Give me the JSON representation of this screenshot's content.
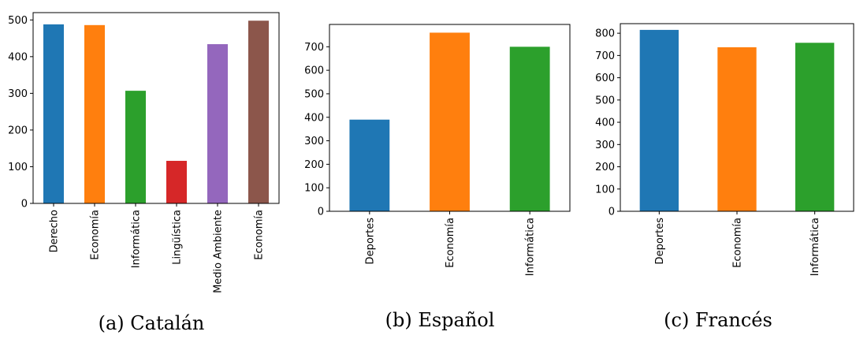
{
  "chart_data": [
    {
      "type": "bar",
      "caption": "(a) Catalán",
      "categories": [
        "Derecho",
        "Economía",
        "Informática",
        "Lingüística",
        "Medio Ambiente",
        "Economía"
      ],
      "values": [
        488,
        486,
        307,
        116,
        434,
        498
      ],
      "colors": [
        "#1f77b4",
        "#ff7f0e",
        "#2ca02c",
        "#d62728",
        "#9467bd",
        "#8c564b"
      ],
      "yticks": [
        0,
        100,
        200,
        300,
        400,
        500
      ],
      "ylim": [
        0,
        520
      ],
      "grid": false,
      "legend": false
    },
    {
      "type": "bar",
      "caption": "(b) Español",
      "categories": [
        "Deportes",
        "Economía",
        "Informática"
      ],
      "values": [
        390,
        760,
        700
      ],
      "colors": [
        "#1f77b4",
        "#ff7f0e",
        "#2ca02c"
      ],
      "yticks": [
        0,
        100,
        200,
        300,
        400,
        500,
        600,
        700
      ],
      "ylim": [
        0,
        795
      ],
      "grid": false,
      "legend": false
    },
    {
      "type": "bar",
      "caption": "(c) Francés",
      "categories": [
        "Deportes",
        "Economía",
        "Informática"
      ],
      "values": [
        815,
        737,
        757
      ],
      "colors": [
        "#1f77b4",
        "#ff7f0e",
        "#2ca02c"
      ],
      "yticks": [
        0,
        100,
        200,
        300,
        400,
        500,
        600,
        700,
        800
      ],
      "ylim": [
        0,
        843
      ],
      "grid": false,
      "legend": false
    }
  ]
}
